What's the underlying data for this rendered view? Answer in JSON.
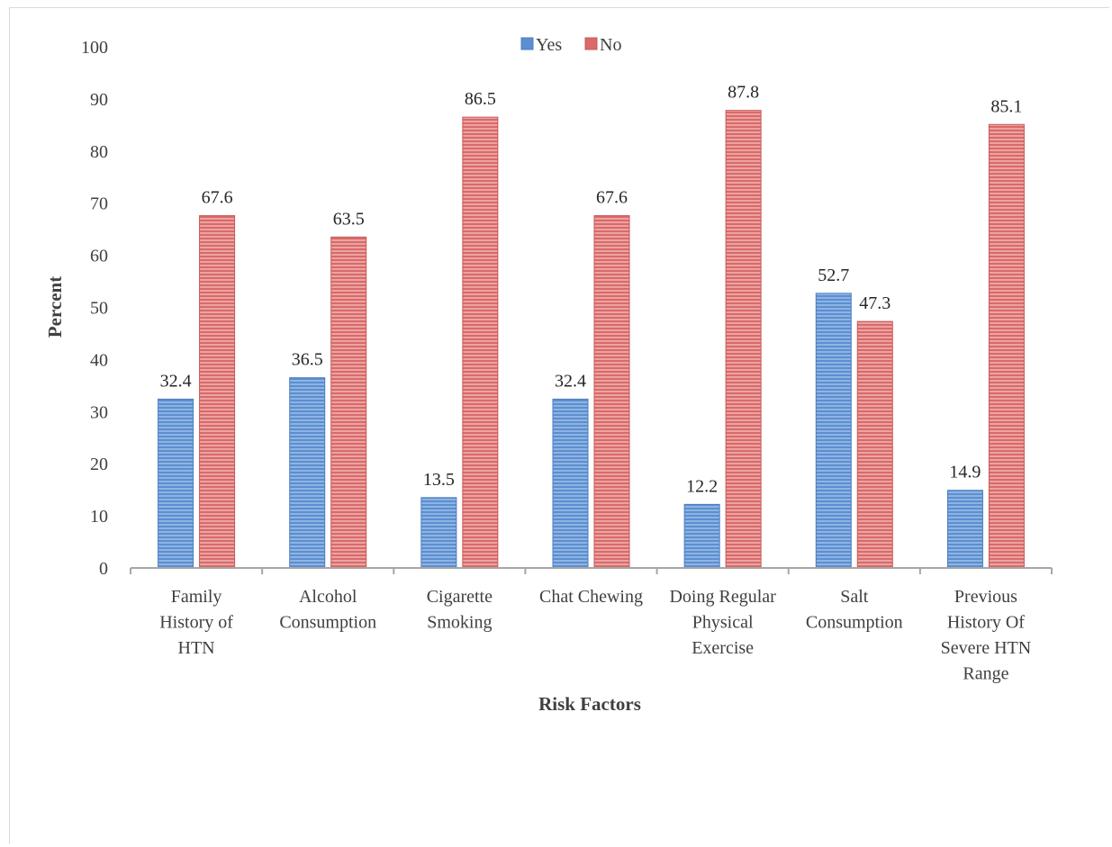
{
  "chart_data": {
    "type": "bar",
    "title": "",
    "xlabel": "Risk Factors",
    "ylabel": "Percent",
    "ylim": [
      0,
      100
    ],
    "yticks": [
      0,
      10,
      20,
      30,
      40,
      50,
      60,
      70,
      80,
      90,
      100
    ],
    "grid": false,
    "legend_position": "top-center",
    "categories": [
      [
        "Family",
        "History of",
        "HTN"
      ],
      [
        "Alcohol",
        "Consumption"
      ],
      [
        "Cigarette",
        "Smoking"
      ],
      [
        "Chat Chewing"
      ],
      [
        "Doing Regular",
        "Physical",
        "Exercise"
      ],
      [
        "Salt",
        "Consumption"
      ],
      [
        "Previous",
        "History Of",
        "Severe HTN",
        "Range"
      ]
    ],
    "series": [
      {
        "name": "Yes",
        "color": "#5b8fd0",
        "values": [
          32.4,
          36.5,
          13.5,
          32.4,
          12.2,
          52.7,
          14.9
        ]
      },
      {
        "name": "No",
        "color": "#d96a69",
        "values": [
          67.6,
          63.5,
          86.5,
          67.6,
          87.8,
          47.3,
          85.1
        ]
      }
    ],
    "data_labels": [
      [
        "32.4",
        "36.5",
        "13.5",
        "32.4",
        "12.2",
        "52.7",
        "14.9"
      ],
      [
        "67.6",
        "63.5",
        "86.5",
        "67.6",
        "87.8",
        "47.3",
        "85.1"
      ]
    ]
  }
}
